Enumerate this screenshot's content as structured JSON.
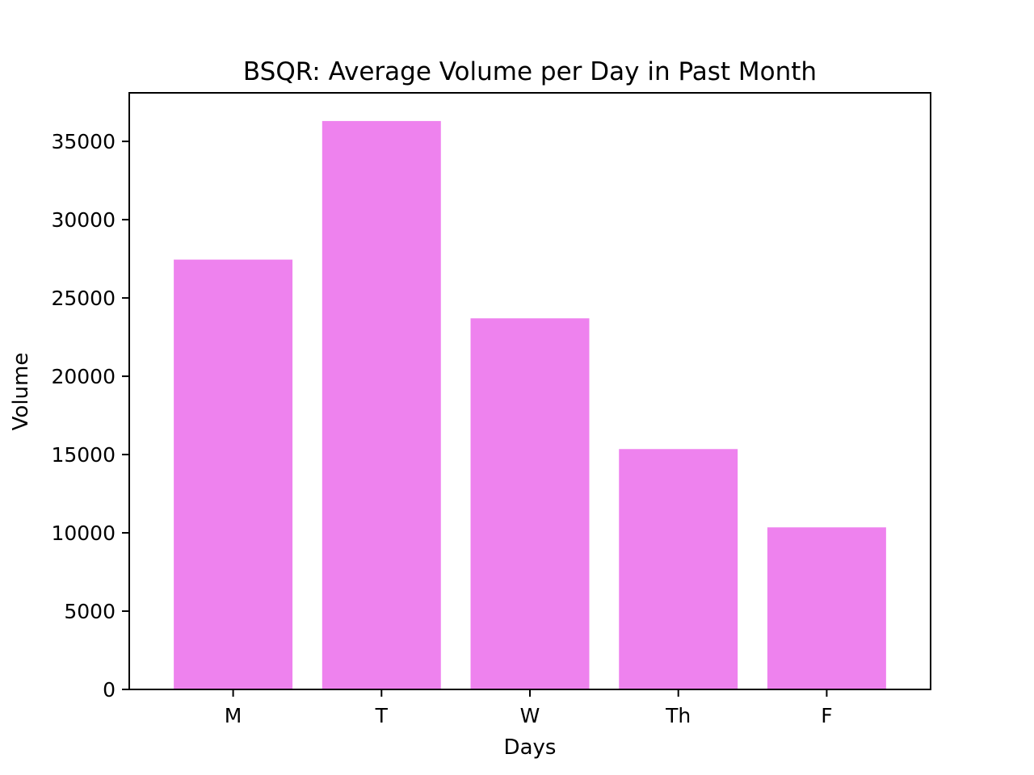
{
  "chart_data": {
    "type": "bar",
    "title": "BSQR: Average Volume per Day in Past Month",
    "xlabel": "Days",
    "ylabel": "Volume",
    "categories": [
      "M",
      "T",
      "W",
      "Th",
      "F"
    ],
    "values": [
      27450,
      36300,
      23700,
      15350,
      10350
    ],
    "ylim": [
      0,
      38100
    ],
    "yticks": [
      0,
      5000,
      10000,
      15000,
      20000,
      25000,
      30000,
      35000
    ],
    "bar_color": "#ee82ee",
    "grid": false,
    "legend": "none"
  }
}
